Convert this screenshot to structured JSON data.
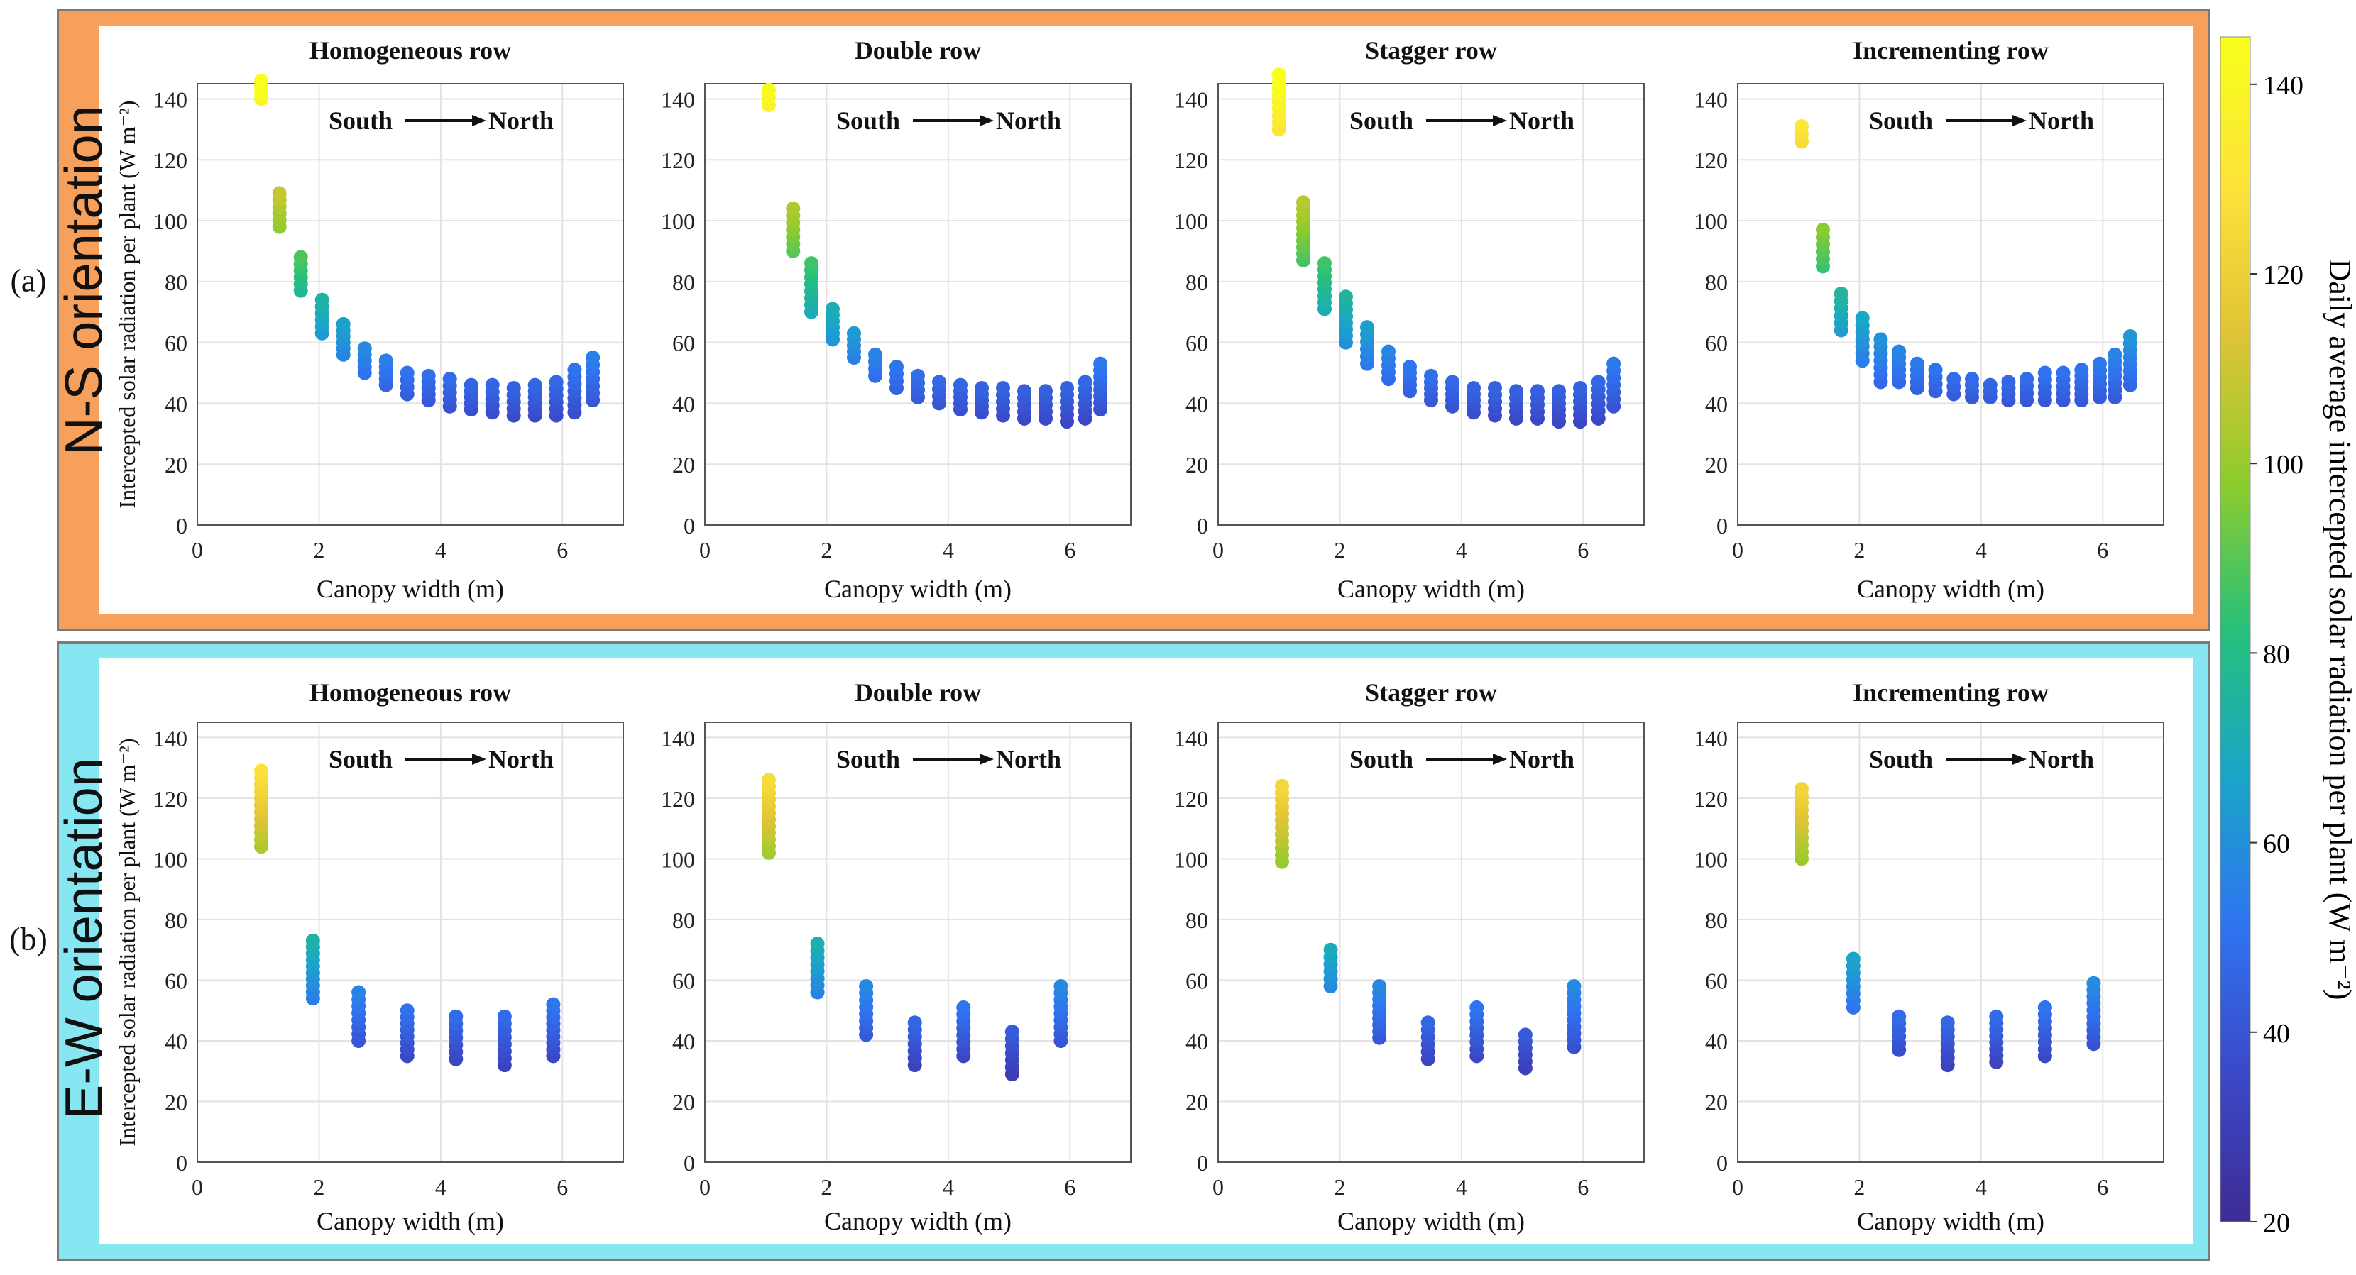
{
  "panels": {
    "ns": {
      "orientation": "N-S orientation",
      "label": "(a)"
    },
    "ew": {
      "orientation": "E-W orientation",
      "label": "(b)"
    }
  },
  "colorbar": {
    "label": "Daily average intercepted solar radiation per plant (W m⁻²)",
    "ticks": [
      20,
      40,
      60,
      80,
      100,
      120,
      140
    ],
    "min": 20,
    "max": 145,
    "colors": [
      "#3e2c95",
      "#3b49c8",
      "#2f74f0",
      "#1aa5c9",
      "#27c07a",
      "#8fcc2c",
      "#e0c436",
      "#fce33a",
      "#f8ff1a"
    ]
  },
  "chart_data": [
    {
      "id": "ns-homogeneous",
      "type": "scatter",
      "title": "Homogeneous row",
      "annotation": "South→North",
      "xlabel": "Canopy width (m)",
      "ylabel": "Intercepted solar radiation per plant  (W m⁻²)",
      "xlim": [
        0,
        7
      ],
      "ylim": [
        0,
        145
      ],
      "xticks": [
        0,
        2,
        4,
        6
      ],
      "yticks": [
        0,
        20,
        40,
        60,
        80,
        100,
        120,
        140
      ],
      "x": [
        1.05,
        1.35,
        1.7,
        2.05,
        2.4,
        2.75,
        3.1,
        3.45,
        3.8,
        4.15,
        4.5,
        4.85,
        5.2,
        5.55,
        5.9,
        6.2,
        6.5
      ],
      "ymin": [
        140,
        98,
        77,
        63,
        56,
        50,
        46,
        43,
        41,
        39,
        38,
        37,
        36,
        36,
        36,
        37,
        41
      ],
      "ymax": [
        146,
        109,
        88,
        74,
        66,
        58,
        54,
        50,
        49,
        48,
        46,
        46,
        45,
        46,
        47,
        51,
        55
      ]
    },
    {
      "id": "ns-double",
      "type": "scatter",
      "title": "Double row",
      "annotation": "South→North",
      "xlabel": "Canopy width (m)",
      "ylabel": "",
      "xlim": [
        0,
        7
      ],
      "ylim": [
        0,
        145
      ],
      "xticks": [
        0,
        2,
        4,
        6
      ],
      "yticks": [
        0,
        20,
        40,
        60,
        80,
        100,
        120,
        140
      ],
      "x": [
        1.05,
        1.45,
        1.75,
        2.1,
        2.45,
        2.8,
        3.15,
        3.5,
        3.85,
        4.2,
        4.55,
        4.9,
        5.25,
        5.6,
        5.95,
        6.25,
        6.5
      ],
      "ymin": [
        138,
        90,
        70,
        61,
        55,
        49,
        45,
        42,
        40,
        38,
        37,
        36,
        35,
        35,
        34,
        35,
        38
      ],
      "ymax": [
        143,
        104,
        86,
        71,
        63,
        56,
        52,
        49,
        47,
        46,
        45,
        45,
        44,
        44,
        45,
        47,
        53
      ]
    },
    {
      "id": "ns-stagger",
      "type": "scatter",
      "title": "Stagger row",
      "annotation": "South→North",
      "xlabel": "Canopy width (m)",
      "ylabel": "",
      "xlim": [
        0,
        7
      ],
      "ylim": [
        0,
        145
      ],
      "xticks": [
        0,
        2,
        4,
        6
      ],
      "yticks": [
        0,
        20,
        40,
        60,
        80,
        100,
        120,
        140
      ],
      "x": [
        1.0,
        1.4,
        1.75,
        2.1,
        2.45,
        2.8,
        3.15,
        3.5,
        3.85,
        4.2,
        4.55,
        4.9,
        5.25,
        5.6,
        5.95,
        6.25,
        6.5
      ],
      "ymin": [
        130,
        87,
        71,
        60,
        53,
        48,
        44,
        41,
        39,
        37,
        36,
        35,
        35,
        34,
        34,
        35,
        39
      ],
      "ymax": [
        148,
        106,
        86,
        75,
        65,
        57,
        52,
        49,
        47,
        45,
        45,
        44,
        44,
        44,
        45,
        47,
        53
      ]
    },
    {
      "id": "ns-incrementing",
      "type": "scatter",
      "title": "Incrementing row",
      "annotation": "South→North",
      "xlabel": "Canopy width (m)",
      "ylabel": "",
      "xlim": [
        0,
        7
      ],
      "ylim": [
        0,
        145
      ],
      "xticks": [
        0,
        2,
        4,
        6
      ],
      "yticks": [
        0,
        20,
        40,
        60,
        80,
        100,
        120,
        140
      ],
      "x": [
        1.05,
        1.4,
        1.7,
        2.05,
        2.35,
        2.65,
        2.95,
        3.25,
        3.55,
        3.85,
        4.15,
        4.45,
        4.75,
        5.05,
        5.35,
        5.65,
        5.95,
        6.2,
        6.45
      ],
      "ymin": [
        126,
        85,
        64,
        54,
        47,
        47,
        45,
        44,
        43,
        42,
        42,
        41,
        41,
        41,
        41,
        41,
        42,
        42,
        46
      ],
      "ymax": [
        131,
        97,
        76,
        68,
        61,
        57,
        53,
        51,
        48,
        48,
        46,
        47,
        48,
        50,
        50,
        51,
        53,
        56,
        62
      ]
    },
    {
      "id": "ew-homogeneous",
      "type": "scatter",
      "title": "Homogeneous row",
      "annotation": "South→North",
      "xlabel": "Canopy width (m)",
      "ylabel": "Intercepted solar radiation per plant (W m⁻²)",
      "xlim": [
        0,
        7
      ],
      "ylim": [
        0,
        145
      ],
      "xticks": [
        0,
        2,
        4,
        6
      ],
      "yticks": [
        0,
        20,
        40,
        60,
        80,
        100,
        120,
        140
      ],
      "x": [
        1.05,
        1.9,
        2.65,
        3.45,
        4.25,
        5.05,
        5.85
      ],
      "ymin": [
        104,
        54,
        40,
        35,
        34,
        32,
        35
      ],
      "ymax": [
        129,
        73,
        56,
        50,
        48,
        48,
        52
      ]
    },
    {
      "id": "ew-double",
      "type": "scatter",
      "title": "Double row",
      "annotation": "South→North",
      "xlabel": "Canopy width (m)",
      "ylabel": "",
      "xlim": [
        0,
        7
      ],
      "ylim": [
        0,
        145
      ],
      "xticks": [
        0,
        2,
        4,
        6
      ],
      "yticks": [
        0,
        20,
        40,
        60,
        80,
        100,
        120,
        140
      ],
      "x": [
        1.05,
        1.85,
        2.65,
        3.45,
        4.25,
        5.05,
        5.85
      ],
      "ymin": [
        102,
        56,
        42,
        32,
        35,
        29,
        40
      ],
      "ymax": [
        126,
        72,
        58,
        46,
        51,
        43,
        58
      ]
    },
    {
      "id": "ew-stagger",
      "type": "scatter",
      "title": "Stagger row",
      "annotation": "South→North",
      "xlabel": "Canopy width (m)",
      "ylabel": "",
      "xlim": [
        0,
        7
      ],
      "ylim": [
        0,
        145
      ],
      "xticks": [
        0,
        2,
        4,
        6
      ],
      "yticks": [
        0,
        20,
        40,
        60,
        80,
        100,
        120,
        140
      ],
      "x": [
        1.05,
        1.85,
        2.65,
        3.45,
        4.25,
        5.05,
        5.85
      ],
      "ymin": [
        99,
        58,
        41,
        34,
        35,
        31,
        38
      ],
      "ymax": [
        124,
        70,
        58,
        46,
        51,
        42,
        58
      ]
    },
    {
      "id": "ew-incrementing",
      "type": "scatter",
      "title": "Incrementing row",
      "annotation": "South→North",
      "xlabel": "Canopy width (m)",
      "ylabel": "",
      "xlim": [
        0,
        7
      ],
      "ylim": [
        0,
        145
      ],
      "xticks": [
        0,
        2,
        4,
        6
      ],
      "yticks": [
        0,
        20,
        40,
        60,
        80,
        100,
        120,
        140
      ],
      "x": [
        1.05,
        1.9,
        2.65,
        3.45,
        4.25,
        5.05,
        5.85
      ],
      "ymin": [
        100,
        51,
        37,
        32,
        33,
        35,
        39
      ],
      "ymax": [
        123,
        67,
        48,
        46,
        48,
        51,
        59
      ]
    }
  ]
}
